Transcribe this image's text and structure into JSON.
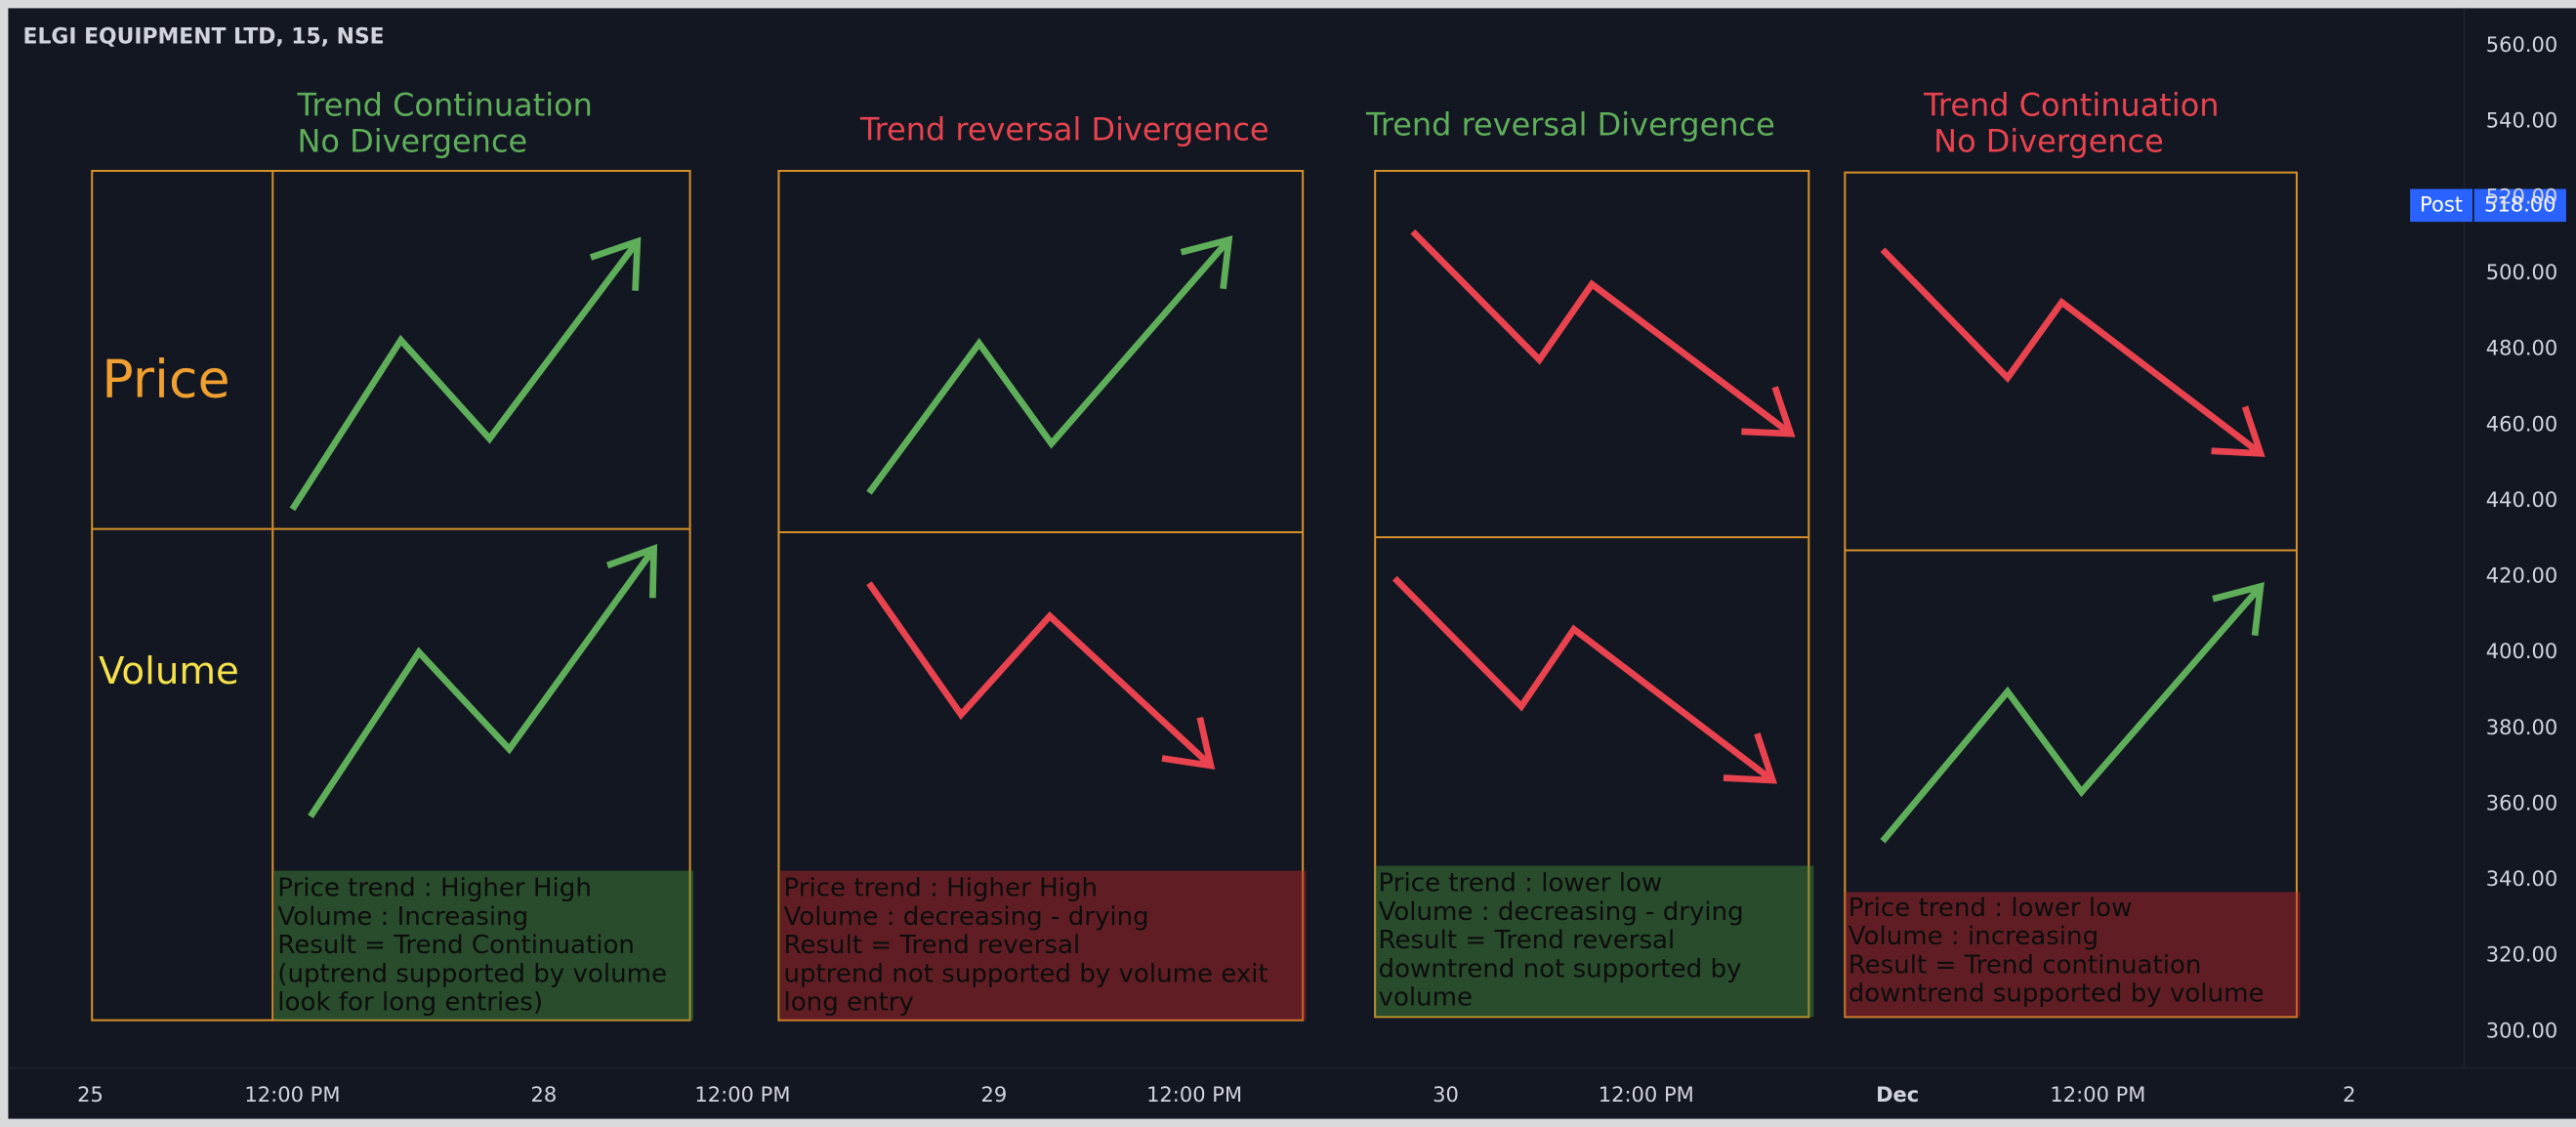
{
  "header": {
    "title": "ELGI EQUIPMENT LTD, 15, NSE"
  },
  "price_axis": {
    "labels": [
      "560.00",
      "540.00",
      "520.00",
      "500.00",
      "480.00",
      "460.00",
      "440.00",
      "420.00",
      "400.00",
      "380.00",
      "360.00",
      "340.00",
      "320.00",
      "300.00"
    ]
  },
  "price_badge": {
    "label": "Post",
    "value": "518.00"
  },
  "time_axis": {
    "labels": [
      "25",
      "12:00 PM",
      "28",
      "12:00 PM",
      "29",
      "12:00 PM",
      "30",
      "12:00 PM",
      "Dec",
      "12:00 PM",
      "2"
    ]
  },
  "row_labels": {
    "price": "Price",
    "volume": "Volume"
  },
  "panels": [
    {
      "title": [
        "Trend Continuation",
        "No Divergence"
      ],
      "notes": [
        "Price trend : Higher High",
        "Volume : Increasing",
        "Result = Trend Continuation",
        "(uptrend supported by volume",
        "look for long entries)"
      ]
    },
    {
      "title": [
        "Trend reversal Divergence"
      ],
      "notes": [
        "Price trend : Higher High",
        "Volume : decreasing - drying",
        "Result = Trend reversal",
        "uptrend not supported by volume exit",
        "long entry"
      ]
    },
    {
      "title": [
        "Trend reversal Divergence"
      ],
      "notes": [
        "Price trend : lower low",
        "Volume : decreasing - drying",
        "Result = Trend reversal",
        "downtrend not supported by",
        "volume"
      ]
    },
    {
      "title": [
        "Trend Continuation",
        "No Divergence"
      ],
      "notes": [
        "Price trend : lower low",
        "Volume : increasing",
        "Result = Trend continuation",
        "downtrend supported by volume"
      ]
    }
  ]
}
